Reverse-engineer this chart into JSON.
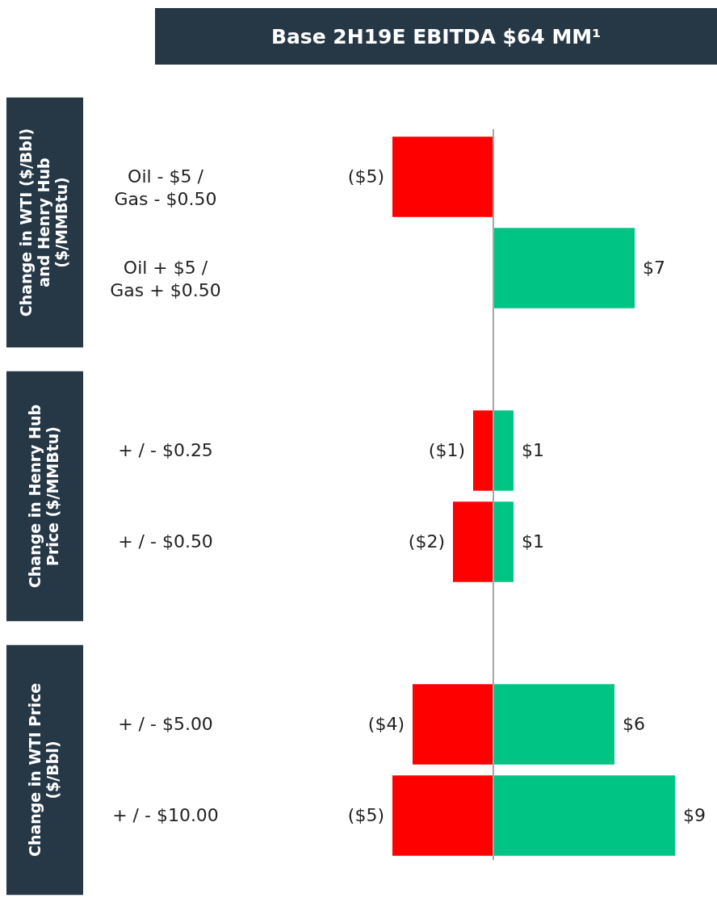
{
  "chart_data": {
    "type": "bar",
    "orientation": "horizontal",
    "title": "Base 2H19E EBITDA $64 MM¹",
    "categories": [
      "Oil - $5 / Gas - $0.50",
      "Oil + $5 / Gas + $0.50",
      "+ / - $0.25",
      "+ / - $0.50",
      "+ / - $5.00",
      "+ / - $10.00"
    ],
    "series": [
      {
        "color": "#ff0000",
        "values": [
          -5,
          null,
          -1,
          -2,
          -4,
          -5
        ],
        "value_labels": [
          "($5)",
          null,
          "($1)",
          "($2)",
          "($4)",
          "($5)"
        ]
      },
      {
        "color": "#00c484",
        "values": [
          null,
          7,
          1,
          1,
          6,
          9
        ],
        "value_labels": [
          null,
          "$7",
          "$1",
          "$1",
          "$6",
          "$9"
        ]
      }
    ],
    "annotations": [
      "Change in WTI ($/Bbl) and Henry Hub ($/MMBtu)",
      "Change in Henry Hub Price ($/MMBtu)",
      "Change in WTI Price ($/Bbl)"
    ],
    "ref_lines": [
      {
        "axis": "x",
        "value": 0,
        "color": "#a6a6a6"
      }
    ],
    "stacked": true
  }
}
